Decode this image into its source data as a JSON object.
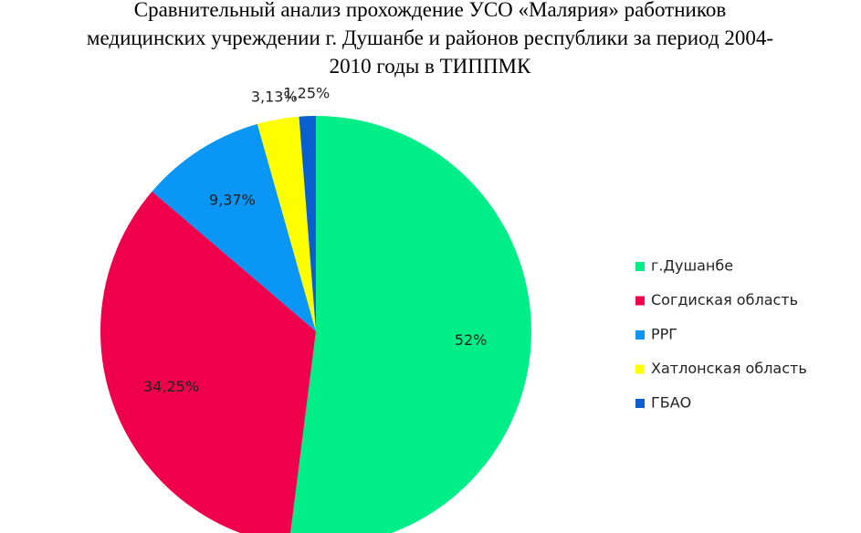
{
  "chart_data": {
    "type": "pie",
    "title": [
      "Сравнительный анализ прохождение УСО «Малярия» работников",
      "медицинских учреждении г. Душанбе и районов республики за период 2004-",
      "2010 годы в ТИППМК"
    ],
    "categories": [
      "г.Душанбе",
      "Согдиская область",
      "РРГ",
      "Хатлонская область",
      "ГБАО"
    ],
    "values": [
      52,
      34.25,
      9.37,
      3.13,
      1.25
    ],
    "value_labels": [
      "52%",
      "34,25%",
      "9,37%",
      "3,13%",
      "1,25%"
    ],
    "colors": [
      "#00ee88",
      "#f0004c",
      "#0a96f5",
      "#ffff00",
      "#0a5fd0"
    ],
    "legend": "right"
  }
}
